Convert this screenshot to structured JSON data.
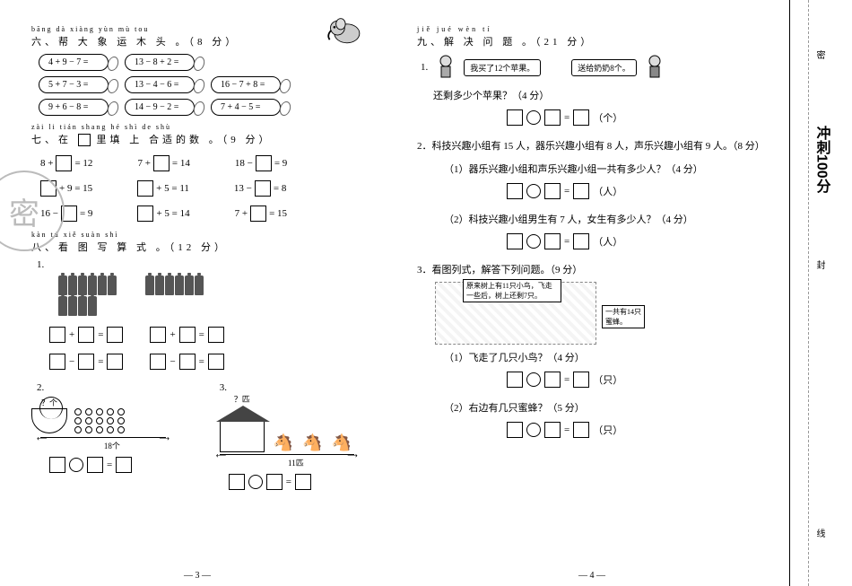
{
  "section6": {
    "pinyin": "bāng dà xiàng yùn mù tou",
    "title": "六、帮 大 象 运 木 头 。（8 分）",
    "rows": [
      [
        "4 + 9 − 7 =",
        "13 − 8 + 2 =",
        ""
      ],
      [
        "5 + 7 − 3 =",
        "13 − 4 − 6 =",
        "16 − 7 + 8 ="
      ],
      [
        "9 + 6 − 8 =",
        "14 − 9 − 2 =",
        "7 + 4 − 5 ="
      ]
    ]
  },
  "section7": {
    "pinyin": "zài     li tián shang hé shì de shù",
    "title_pre": "七、在",
    "title_post": "里填 上 合适的数 。（9 分）",
    "rows": [
      [
        {
          "pre": "8 +",
          "post": "= 12"
        },
        {
          "pre": "7 +",
          "post": "= 14"
        },
        {
          "pre": "18 −",
          "post": "= 9"
        }
      ],
      [
        {
          "pre": "",
          "post": "+ 9 = 15"
        },
        {
          "pre": "",
          "post": "+ 5 = 11"
        },
        {
          "pre": "13 −",
          "post": "= 8"
        }
      ],
      [
        {
          "pre": "16 −",
          "post": "= 9"
        },
        {
          "pre": "",
          "post": "+ 5 = 14"
        },
        {
          "pre": "7 +",
          "post": "= 15"
        }
      ]
    ]
  },
  "section8": {
    "pinyin": "kàn tú xiě suàn shì",
    "title": "八、看 图 写 算 式 。（12 分）",
    "q2_label_top": "？个",
    "q2_label_bottom": "18个",
    "q3_label_top": "？匹",
    "q3_label_bottom": "11匹"
  },
  "section9": {
    "pinyin": "jiě jué wèn tí",
    "title": "九、解 决 问 题 。（21 分）",
    "q1_speech1": "我买了12个苹果。",
    "q1_speech2": "送给奶奶8个。",
    "q1_q": "还剩多少个苹果？（4 分）",
    "q1_unit": "（个）",
    "q2_stem": "2．科技兴趣小组有 15 人，器乐兴趣小组有 8 人，声乐兴趣小组有 9 人。（8 分）",
    "q2_1": "（1）器乐兴趣小组和声乐兴趣小组一共有多少人？（4 分）",
    "q2_2": "（2）科技兴趣小组男生有 7 人，女生有多少人？（4 分）",
    "q2_unit": "（人）",
    "q3_stem": "3．看图列式，解答下列问题。（9 分）",
    "q3_callout1": "原来树上有11只小鸟，飞走一些后，树上还剩7只。",
    "q3_callout2": "一共有14只蜜蜂。",
    "q3_1": "（1）飞走了几只小鸟？（4 分）",
    "q3_2": "（2）右边有几只蜜蜂？（5 分）",
    "q3_unit": "（只）"
  },
  "page_left": "— 3 —",
  "page_right": "— 4 —",
  "sidebar": {
    "brand": "冲刺100分",
    "d1": "密",
    "d2": "封",
    "d3": "线"
  }
}
